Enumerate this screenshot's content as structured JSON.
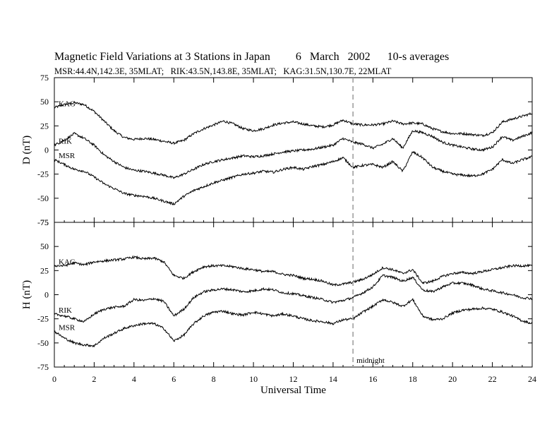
{
  "title": "Magnetic Field Variations at 3 Stations in Japan",
  "date": "6   March   2002",
  "averaging": "10-s averages",
  "stations_info": "MSR:44.4N,142.3E, 35MLAT;   RIK:43.5N,143.8E, 35MLAT;   KAG:31.5N,130.7E, 22MLAT",
  "chart_data": {
    "type": "line",
    "xlabel": "Universal Time",
    "xlim": [
      0,
      24
    ],
    "x_ticks": [
      0,
      2,
      4,
      6,
      8,
      10,
      12,
      14,
      16,
      18,
      20,
      22,
      24
    ],
    "marker_line": {
      "x": 15,
      "label": "midnight",
      "style": "dashed"
    },
    "panels": [
      {
        "ylabel": "D (nT)",
        "ylim": [
          -75,
          75
        ],
        "y_ticks": [
          -75,
          -50,
          -25,
          0,
          25,
          50,
          75
        ],
        "series": [
          {
            "name": "KAG",
            "x": [
              0,
              0.5,
              1,
              1.5,
              2,
              2.5,
              3,
              3.5,
              4,
              4.5,
              5,
              5.5,
              6,
              6.5,
              7,
              7.5,
              8,
              8.5,
              9,
              9.5,
              10,
              10.5,
              11,
              11.5,
              12,
              12.5,
              13,
              13.5,
              14,
              14.5,
              15,
              15.5,
              16,
              16.5,
              17,
              17.5,
              18,
              18.5,
              19,
              19.5,
              20,
              20.5,
              21,
              21.5,
              22,
              22.5,
              23,
              23.5,
              24
            ],
            "values": [
              44,
              47,
              49,
              47,
              40,
              30,
              20,
              13,
              11,
              12,
              11,
              9,
              7,
              10,
              17,
              22,
              26,
              30,
              27,
              22,
              20,
              22,
              26,
              28,
              29,
              27,
              25,
              24,
              26,
              31,
              27,
              26,
              26,
              27,
              30,
              27,
              28,
              27,
              22,
              19,
              17,
              17,
              16,
              15,
              18,
              29,
              32,
              35,
              38
            ]
          },
          {
            "name": "RIK",
            "x": [
              0,
              0.5,
              1,
              1.5,
              2,
              2.5,
              3,
              3.5,
              4,
              4.5,
              5,
              5.5,
              6,
              6.5,
              7,
              7.5,
              8,
              8.5,
              9,
              9.5,
              10,
              10.5,
              11,
              11.5,
              12,
              12.5,
              13,
              13.5,
              14,
              14.5,
              15,
              15.5,
              16,
              16.5,
              17,
              17.5,
              18,
              18.5,
              19,
              19.5,
              20,
              20.5,
              21,
              21.5,
              22,
              22.5,
              23,
              23.5,
              24
            ],
            "values": [
              5,
              10,
              17,
              12,
              5,
              -5,
              -12,
              -18,
              -21,
              -22,
              -24,
              -26,
              -29,
              -25,
              -20,
              -15,
              -12,
              -10,
              -8,
              -6,
              -7,
              -6,
              -4,
              -2,
              -1,
              0,
              1,
              3,
              5,
              12,
              8,
              6,
              2,
              6,
              12,
              2,
              20,
              18,
              14,
              8,
              5,
              3,
              1,
              0,
              3,
              14,
              10,
              14,
              18
            ]
          },
          {
            "name": "MSR",
            "x": [
              0,
              0.5,
              1,
              1.5,
              2,
              2.5,
              3,
              3.5,
              4,
              4.5,
              5,
              5.5,
              6,
              6.5,
              7,
              7.5,
              8,
              8.5,
              9,
              9.5,
              10,
              10.5,
              11,
              11.5,
              12,
              12.5,
              13,
              13.5,
              14,
              14.5,
              15,
              15.5,
              16,
              16.5,
              17,
              17.5,
              18,
              18.5,
              19,
              19.5,
              20,
              20.5,
              21,
              21.5,
              22,
              22.5,
              23,
              23.5,
              24
            ],
            "values": [
              -10,
              -15,
              -20,
              -22,
              -28,
              -35,
              -40,
              -45,
              -47,
              -48,
              -50,
              -53,
              -56,
              -48,
              -42,
              -38,
              -34,
              -31,
              -28,
              -25,
              -24,
              -22,
              -23,
              -20,
              -18,
              -20,
              -17,
              -15,
              -12,
              -8,
              -18,
              -16,
              -15,
              -18,
              -12,
              -22,
              -2,
              -8,
              -18,
              -22,
              -25,
              -26,
              -27,
              -25,
              -20,
              -10,
              -14,
              -10,
              -7
            ]
          }
        ]
      },
      {
        "ylabel": "H (nT)",
        "ylim": [
          -75,
          75
        ],
        "y_ticks": [
          -75,
          -50,
          -25,
          0,
          25,
          50,
          75
        ],
        "series": [
          {
            "name": "KAG",
            "x": [
              0,
              0.5,
              1,
              1.5,
              2,
              2.5,
              3,
              3.5,
              4,
              4.5,
              5,
              5.5,
              6,
              6.5,
              7,
              7.5,
              8,
              8.5,
              9,
              9.5,
              10,
              10.5,
              11,
              11.5,
              12,
              12.5,
              13,
              13.5,
              14,
              14.5,
              15,
              15.5,
              16,
              16.5,
              17,
              17.5,
              18,
              18.5,
              19,
              19.5,
              20,
              20.5,
              21,
              21.5,
              22,
              22.5,
              23,
              23.5,
              24
            ],
            "values": [
              30,
              30,
              33,
              31,
              34,
              35,
              36,
              37,
              39,
              37,
              38,
              34,
              20,
              17,
              24,
              29,
              30,
              30,
              29,
              27,
              26,
              24,
              24,
              21,
              20,
              17,
              16,
              14,
              10,
              11,
              13,
              16,
              21,
              28,
              26,
              22,
              26,
              12,
              14,
              19,
              22,
              23,
              22,
              24,
              26,
              28,
              30,
              30,
              30
            ]
          },
          {
            "name": "RIK",
            "x": [
              0,
              0.5,
              1,
              1.5,
              2,
              2.5,
              3,
              3.5,
              4,
              4.5,
              5,
              5.5,
              6,
              6.5,
              7,
              7.5,
              8,
              8.5,
              9,
              9.5,
              10,
              10.5,
              11,
              11.5,
              12,
              12.5,
              13,
              13.5,
              14,
              14.5,
              15,
              15.5,
              16,
              16.5,
              17,
              17.5,
              18,
              18.5,
              19,
              19.5,
              20,
              20.5,
              21,
              21.5,
              22,
              22.5,
              23,
              23.5,
              24
            ],
            "values": [
              -20,
              -22,
              -25,
              -28,
              -20,
              -15,
              -13,
              -12,
              -5,
              -6,
              -4,
              -7,
              -22,
              -15,
              -3,
              3,
              5,
              6,
              5,
              3,
              4,
              6,
              5,
              2,
              1,
              -1,
              -3,
              -5,
              -8,
              -6,
              -3,
              2,
              8,
              20,
              18,
              14,
              18,
              5,
              3,
              8,
              12,
              12,
              10,
              6,
              4,
              2,
              0,
              -3,
              -4
            ]
          },
          {
            "name": "MSR",
            "x": [
              0,
              0.5,
              1,
              1.5,
              2,
              2.5,
              3,
              3.5,
              4,
              4.5,
              5,
              5.5,
              6,
              6.5,
              7,
              7.5,
              8,
              8.5,
              9,
              9.5,
              10,
              10.5,
              11,
              11.5,
              12,
              12.5,
              13,
              13.5,
              14,
              14.5,
              15,
              15.5,
              16,
              16.5,
              17,
              17.5,
              18,
              18.5,
              19,
              19.5,
              20,
              20.5,
              21,
              21.5,
              22,
              22.5,
              23,
              23.5,
              24
            ],
            "values": [
              -38,
              -45,
              -50,
              -52,
              -53,
              -45,
              -40,
              -35,
              -32,
              -30,
              -30,
              -35,
              -48,
              -42,
              -30,
              -22,
              -18,
              -17,
              -20,
              -21,
              -18,
              -20,
              -22,
              -20,
              -22,
              -25,
              -27,
              -28,
              -30,
              -26,
              -25,
              -18,
              -12,
              -5,
              -8,
              -12,
              -5,
              -22,
              -26,
              -25,
              -19,
              -16,
              -15,
              -14,
              -15,
              -18,
              -22,
              -27,
              -30
            ]
          }
        ]
      }
    ]
  }
}
